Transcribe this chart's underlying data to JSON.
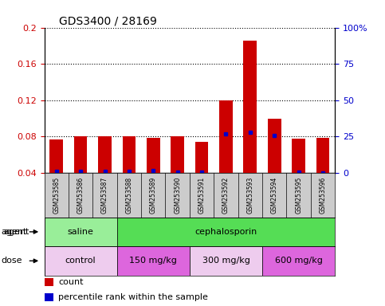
{
  "title": "GDS3400 / 28169",
  "samples": [
    "GSM253585",
    "GSM253586",
    "GSM253587",
    "GSM253588",
    "GSM253589",
    "GSM253590",
    "GSM253591",
    "GSM253592",
    "GSM253593",
    "GSM253594",
    "GSM253595",
    "GSM253596"
  ],
  "count_values": [
    0.077,
    0.08,
    0.08,
    0.08,
    0.079,
    0.08,
    0.074,
    0.12,
    0.186,
    0.1,
    0.078,
    0.079
  ],
  "percentile_values": [
    0.0415,
    0.0415,
    0.0415,
    0.0418,
    0.043,
    0.0412,
    0.0412,
    0.083,
    0.085,
    0.081,
    0.0412,
    0.04
  ],
  "ylim": [
    0.04,
    0.2
  ],
  "yticks_left": [
    0.04,
    0.08,
    0.12,
    0.16,
    0.2
  ],
  "ytick_labels_left": [
    "0.04",
    "0.08",
    "0.12",
    "0.16",
    "0.2"
  ],
  "ytick_labels_right": [
    "0",
    "25",
    "50",
    "75",
    "100%"
  ],
  "grid_yticks": [
    0.08,
    0.12,
    0.16,
    0.2
  ],
  "bar_color": "#cc0000",
  "percentile_color": "#0000cc",
  "bar_width": 0.55,
  "agent_groups": [
    {
      "label": "saline",
      "start": 0,
      "end": 3,
      "color": "#99ee99"
    },
    {
      "label": "cephalosporin",
      "start": 3,
      "end": 12,
      "color": "#55dd55"
    }
  ],
  "dose_groups": [
    {
      "label": "control",
      "start": 0,
      "end": 3,
      "color": "#eeccee"
    },
    {
      "label": "150 mg/kg",
      "start": 3,
      "end": 6,
      "color": "#dd66dd"
    },
    {
      "label": "300 mg/kg",
      "start": 6,
      "end": 9,
      "color": "#eeccee"
    },
    {
      "label": "600 mg/kg",
      "start": 9,
      "end": 12,
      "color": "#dd66dd"
    }
  ],
  "xlabel_row1": "agent",
  "xlabel_row2": "dose",
  "legend_count_label": "count",
  "legend_percentile_label": "percentile rank within the sample",
  "tick_label_area_color": "#cccccc",
  "left_axis_color": "#cc0000",
  "right_axis_color": "#0000cc"
}
